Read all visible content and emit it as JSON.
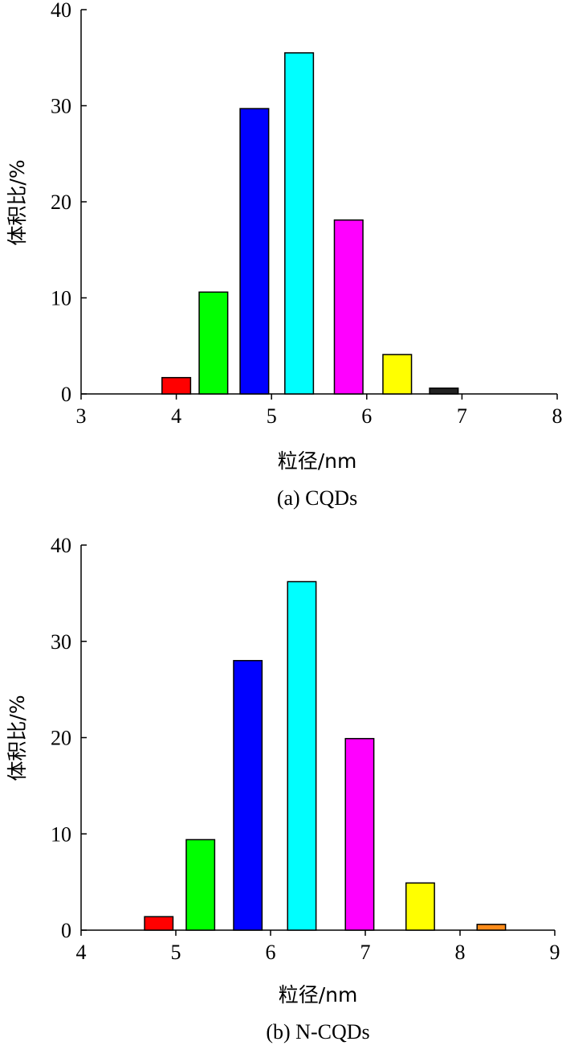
{
  "chart_data": [
    {
      "type": "bar",
      "caption": "(a) CQDs",
      "xlabel": "粒径/nm",
      "ylabel": "体积比/%",
      "xlim": [
        3,
        8
      ],
      "ylim": [
        0,
        40
      ],
      "xticks": [
        3,
        4,
        5,
        6,
        7,
        8
      ],
      "yticks": [
        0,
        10,
        20,
        30,
        40
      ],
      "bar_width": 0.3,
      "bars": [
        {
          "x": 4.0,
          "value": 1.7,
          "color": "#ff0000"
        },
        {
          "x": 4.39,
          "value": 10.6,
          "color": "#00ff00"
        },
        {
          "x": 4.82,
          "value": 29.7,
          "color": "#0000ff"
        },
        {
          "x": 5.29,
          "value": 35.5,
          "color": "#00ffff"
        },
        {
          "x": 5.81,
          "value": 18.1,
          "color": "#ff00ff"
        },
        {
          "x": 6.32,
          "value": 4.1,
          "color": "#ffff00"
        },
        {
          "x": 6.81,
          "value": 0.6,
          "color": "#222222"
        }
      ]
    },
    {
      "type": "bar",
      "caption": "(b) N-CQDs",
      "xlabel": "粒径/nm",
      "ylabel": "体积比/%",
      "xlim": [
        4,
        9
      ],
      "ylim": [
        0,
        40
      ],
      "xticks": [
        4,
        5,
        6,
        7,
        8,
        9
      ],
      "yticks": [
        0,
        10,
        20,
        30,
        40
      ],
      "bar_width": 0.3,
      "bars": [
        {
          "x": 4.82,
          "value": 1.4,
          "color": "#ff0000"
        },
        {
          "x": 5.26,
          "value": 9.4,
          "color": "#00ff00"
        },
        {
          "x": 5.76,
          "value": 28.0,
          "color": "#0000ff"
        },
        {
          "x": 6.33,
          "value": 36.2,
          "color": "#00ffff"
        },
        {
          "x": 6.94,
          "value": 19.9,
          "color": "#ff00ff"
        },
        {
          "x": 7.58,
          "value": 4.9,
          "color": "#ffff00"
        },
        {
          "x": 8.33,
          "value": 0.6,
          "color": "#ff8c1a"
        }
      ]
    }
  ]
}
